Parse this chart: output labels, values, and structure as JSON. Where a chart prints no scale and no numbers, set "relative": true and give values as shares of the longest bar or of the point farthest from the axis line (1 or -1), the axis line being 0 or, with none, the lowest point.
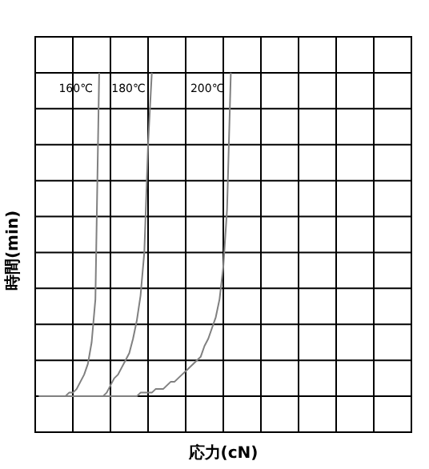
{
  "chart_data": {
    "type": "line",
    "relative": true,
    "xlabel": "応力(cN)",
    "ylabel": "時間(min)",
    "categories": [
      null,
      null,
      null,
      null,
      null,
      null,
      null,
      null,
      null,
      null,
      null,
      null,
      null,
      null,
      null,
      null,
      null,
      null,
      null,
      null,
      null,
      null,
      null,
      null,
      null,
      null,
      null,
      null,
      null,
      null,
      null,
      null,
      null,
      null,
      null,
      null,
      null,
      null,
      null,
      null,
      null,
      null,
      null,
      null,
      null,
      null,
      null,
      null,
      null,
      null,
      null,
      null,
      null,
      null,
      null,
      null,
      null,
      null,
      null,
      null,
      null,
      null,
      null,
      null,
      null,
      null,
      null,
      null,
      null,
      null,
      null,
      null,
      null,
      null,
      null,
      null,
      null,
      null,
      null,
      null,
      null,
      null,
      null,
      null,
      null,
      null,
      null,
      null,
      null,
      null,
      null,
      null,
      null,
      null,
      null,
      null,
      null,
      null,
      null,
      null,
      null
    ],
    "grid": true,
    "legend": false,
    "marker": "none",
    "line_style": "solid",
    "series": [
      {
        "name": "160℃",
        "color": "#808080",
        "values": [
          null,
          0.1,
          0.1,
          0.1,
          0.1,
          0.1,
          0.1,
          0.1,
          0.1,
          0.11,
          0.11,
          0.12,
          0.14,
          0.16,
          0.19,
          0.25,
          0.37,
          1.0,
          null,
          null,
          null,
          null,
          null,
          null,
          null,
          null,
          null,
          null,
          null,
          null,
          null,
          null,
          null,
          null,
          null,
          null,
          null,
          null,
          null,
          null,
          null,
          null,
          null,
          null,
          null,
          null,
          null,
          null,
          null,
          null,
          null,
          null,
          null,
          null,
          null,
          null,
          null,
          null,
          null,
          null,
          null,
          null,
          null,
          null,
          null,
          null,
          null,
          null,
          null,
          null,
          null,
          null,
          null,
          null,
          null,
          null,
          null,
          null,
          null,
          null,
          null,
          null,
          null,
          null,
          null,
          null,
          null,
          null,
          null,
          null,
          null,
          null,
          null,
          null,
          null,
          null,
          null,
          null,
          null,
          null,
          null
        ]
      },
      {
        "name": "180℃",
        "color": "#808080",
        "values": [
          null,
          0.1,
          0.1,
          0.1,
          0.1,
          0.1,
          0.1,
          0.1,
          0.1,
          0.1,
          0.1,
          0.1,
          0.1,
          0.1,
          0.1,
          0.1,
          0.1,
          0.1,
          0.1,
          0.11,
          0.13,
          0.15,
          0.16,
          0.18,
          0.2,
          0.22,
          0.26,
          0.31,
          0.38,
          0.5,
          0.8,
          1.0,
          null,
          null,
          null,
          null,
          null,
          null,
          null,
          null,
          null,
          null,
          null,
          null,
          null,
          null,
          null,
          null,
          null,
          null,
          null,
          null,
          null,
          null,
          null,
          null,
          null,
          null,
          null,
          null,
          null,
          null,
          null,
          null,
          null,
          null,
          null,
          null,
          null,
          null,
          null,
          null,
          null,
          null,
          null,
          null,
          null,
          null,
          null,
          null,
          null,
          null,
          null,
          null,
          null,
          null,
          null,
          null,
          null,
          null,
          null,
          null,
          null,
          null,
          null,
          null,
          null,
          null,
          null,
          null,
          null
        ]
      },
      {
        "name": "200℃",
        "color": "#808080",
        "values": [
          null,
          0.1,
          0.1,
          0.1,
          0.1,
          0.1,
          0.1,
          0.1,
          0.1,
          0.1,
          0.1,
          0.1,
          0.1,
          0.1,
          0.1,
          0.1,
          0.1,
          0.1,
          0.1,
          0.1,
          0.1,
          0.1,
          0.1,
          0.1,
          0.1,
          0.1,
          0.1,
          0.1,
          0.11,
          0.11,
          0.11,
          0.11,
          0.12,
          0.12,
          0.12,
          0.13,
          0.14,
          0.14,
          0.15,
          0.16,
          0.17,
          0.18,
          0.19,
          0.2,
          0.21,
          0.24,
          0.26,
          0.29,
          0.32,
          0.37,
          0.46,
          0.62,
          1.0,
          null,
          null,
          null,
          null,
          null,
          null,
          null,
          null,
          null,
          null,
          null,
          null,
          null,
          null,
          null,
          null,
          null,
          null,
          null,
          null,
          null,
          null,
          null,
          null,
          null,
          null,
          null,
          null,
          null,
          null,
          null,
          null,
          null,
          null,
          null,
          null,
          null,
          null,
          null,
          null,
          null,
          null,
          null,
          null,
          null,
          null,
          null,
          null
        ]
      }
    ]
  }
}
